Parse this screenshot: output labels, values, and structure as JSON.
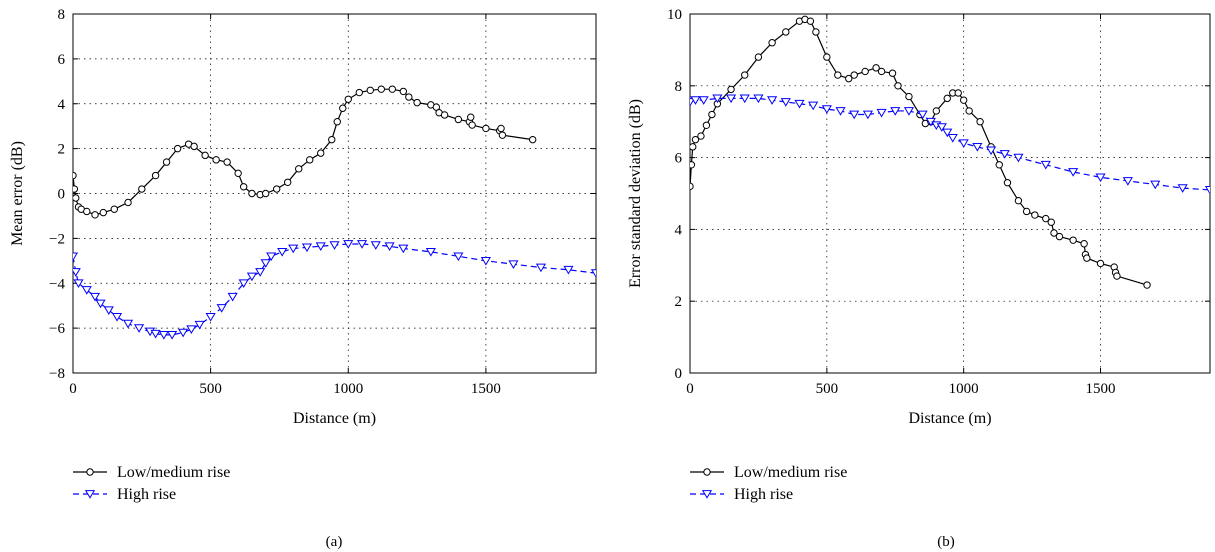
{
  "chart_data": [
    {
      "type": "line",
      "caption": "(a)",
      "xlabel": "Distance (m)",
      "ylabel": "Mean error (dB)",
      "xlim": [
        0,
        1900
      ],
      "ylim": [
        -8,
        8
      ],
      "xticks": [
        0,
        500,
        1000,
        1500
      ],
      "yticks": [
        -8,
        -6,
        -4,
        -2,
        0,
        2,
        4,
        6,
        8
      ],
      "xtick_labels": [
        "0",
        "500",
        "1000",
        "1500"
      ],
      "ytick_labels": [
        "−8",
        "−6",
        "−4",
        "−2",
        "0",
        "2",
        "4",
        "6",
        "8"
      ],
      "grid": true,
      "legend_position": "below",
      "series": [
        {
          "name": "Low/medium rise",
          "color": "#000000",
          "marker": "circle",
          "line": "solid",
          "x": [
            0,
            5,
            10,
            20,
            30,
            50,
            80,
            110,
            150,
            200,
            250,
            300,
            340,
            380,
            420,
            440,
            480,
            520,
            560,
            600,
            620,
            650,
            680,
            700,
            740,
            780,
            820,
            860,
            900,
            940,
            960,
            980,
            1000,
            1040,
            1080,
            1120,
            1160,
            1200,
            1220,
            1250,
            1300,
            1320,
            1330,
            1350,
            1400,
            1440,
            1445,
            1450,
            1500,
            1550,
            1555,
            1560,
            1670
          ],
          "y": [
            0.8,
            0.2,
            -0.2,
            -0.6,
            -0.7,
            -0.8,
            -0.95,
            -0.85,
            -0.7,
            -0.4,
            0.2,
            0.8,
            1.4,
            2.0,
            2.2,
            2.1,
            1.7,
            1.5,
            1.4,
            0.9,
            0.3,
            0.0,
            -0.05,
            0.0,
            0.2,
            0.5,
            1.1,
            1.5,
            1.8,
            2.4,
            3.2,
            3.8,
            4.2,
            4.5,
            4.6,
            4.65,
            4.65,
            4.55,
            4.3,
            4.05,
            3.95,
            3.85,
            3.6,
            3.5,
            3.3,
            3.2,
            3.4,
            3.05,
            2.9,
            2.8,
            2.9,
            2.6,
            2.4
          ]
        },
        {
          "name": "High rise",
          "color": "#0000ff",
          "marker": "triangle-down",
          "line": "dashed",
          "x": [
            0,
            10,
            20,
            50,
            80,
            100,
            130,
            160,
            200,
            240,
            280,
            300,
            330,
            360,
            400,
            430,
            460,
            500,
            540,
            580,
            620,
            650,
            680,
            700,
            720,
            760,
            800,
            850,
            900,
            950,
            1000,
            1050,
            1100,
            1150,
            1200,
            1300,
            1400,
            1500,
            1600,
            1700,
            1800,
            1900
          ],
          "y": [
            -2.8,
            -3.5,
            -4.0,
            -4.3,
            -4.6,
            -4.9,
            -5.2,
            -5.5,
            -5.8,
            -6.0,
            -6.15,
            -6.25,
            -6.3,
            -6.3,
            -6.2,
            -6.05,
            -5.85,
            -5.5,
            -5.1,
            -4.6,
            -4.0,
            -3.7,
            -3.5,
            -3.1,
            -2.8,
            -2.6,
            -2.45,
            -2.4,
            -2.35,
            -2.3,
            -2.25,
            -2.25,
            -2.3,
            -2.35,
            -2.45,
            -2.6,
            -2.8,
            -3.0,
            -3.15,
            -3.3,
            -3.4,
            -3.55
          ]
        }
      ]
    },
    {
      "type": "line",
      "caption": "(b)",
      "xlabel": "Distance (m)",
      "ylabel": "Error standard deviation (dB)",
      "xlim": [
        0,
        1900
      ],
      "ylim": [
        0,
        10
      ],
      "xticks": [
        0,
        500,
        1000,
        1500
      ],
      "yticks": [
        0,
        2,
        4,
        6,
        8,
        10
      ],
      "xtick_labels": [
        "0",
        "500",
        "1000",
        "1500"
      ],
      "ytick_labels": [
        "0",
        "2",
        "4",
        "6",
        "8",
        "10"
      ],
      "grid": true,
      "legend_position": "below",
      "series": [
        {
          "name": "Low/medium rise",
          "color": "#000000",
          "marker": "circle",
          "line": "solid",
          "x": [
            0,
            5,
            10,
            20,
            40,
            60,
            80,
            100,
            150,
            200,
            250,
            300,
            350,
            400,
            420,
            440,
            460,
            500,
            540,
            580,
            600,
            640,
            680,
            700,
            740,
            760,
            800,
            840,
            860,
            880,
            900,
            940,
            960,
            980,
            1000,
            1020,
            1060,
            1100,
            1130,
            1160,
            1200,
            1230,
            1260,
            1300,
            1320,
            1330,
            1350,
            1400,
            1440,
            1445,
            1450,
            1500,
            1550,
            1555,
            1560,
            1670
          ],
          "y": [
            5.2,
            5.8,
            6.3,
            6.5,
            6.6,
            6.9,
            7.2,
            7.5,
            7.9,
            8.3,
            8.8,
            9.2,
            9.5,
            9.8,
            9.85,
            9.8,
            9.5,
            8.8,
            8.3,
            8.2,
            8.3,
            8.4,
            8.5,
            8.4,
            8.35,
            8.0,
            7.7,
            7.2,
            6.95,
            7.0,
            7.3,
            7.65,
            7.8,
            7.8,
            7.6,
            7.3,
            7.0,
            6.3,
            5.8,
            5.3,
            4.8,
            4.5,
            4.4,
            4.3,
            4.2,
            3.9,
            3.8,
            3.7,
            3.6,
            3.3,
            3.2,
            3.05,
            2.95,
            2.8,
            2.7,
            2.45
          ]
        },
        {
          "name": "High rise",
          "color": "#0000ff",
          "marker": "triangle-down",
          "line": "dashed",
          "x": [
            0,
            20,
            50,
            100,
            150,
            200,
            250,
            300,
            350,
            400,
            450,
            500,
            550,
            600,
            650,
            700,
            750,
            800,
            850,
            880,
            900,
            920,
            940,
            960,
            1000,
            1050,
            1100,
            1150,
            1200,
            1300,
            1400,
            1500,
            1600,
            1700,
            1800,
            1900
          ],
          "y": [
            7.55,
            7.6,
            7.6,
            7.65,
            7.65,
            7.65,
            7.65,
            7.6,
            7.55,
            7.5,
            7.45,
            7.35,
            7.3,
            7.2,
            7.2,
            7.25,
            7.3,
            7.3,
            7.2,
            7.0,
            6.9,
            6.85,
            6.7,
            6.55,
            6.4,
            6.3,
            6.2,
            6.1,
            6.0,
            5.8,
            5.6,
            5.45,
            5.35,
            5.25,
            5.15,
            5.1
          ]
        }
      ]
    }
  ]
}
